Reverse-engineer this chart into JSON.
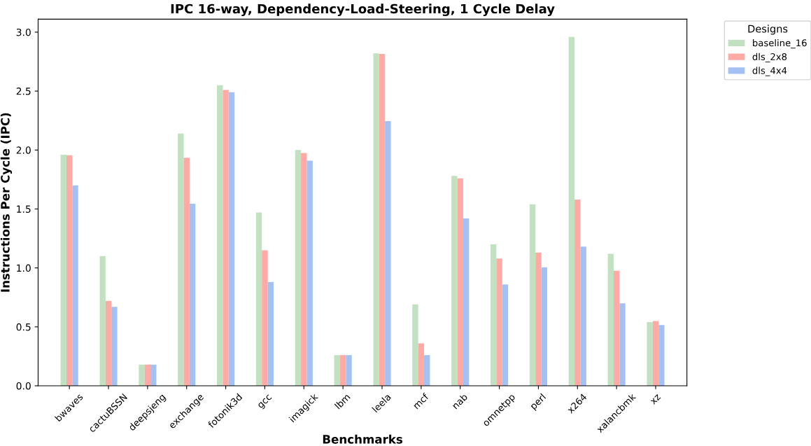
{
  "chart_data": {
    "type": "bar",
    "title": "IPC 16-way, Dependency-Load-Steering, 1 Cycle Delay",
    "xlabel": "Benchmarks",
    "ylabel": "Instructions Per Cycle (IPC)",
    "legend_title": "Designs",
    "legend": "top right",
    "categories": [
      "bwaves",
      "cactuBSSN",
      "deepsjeng",
      "exchange",
      "fotonik3d",
      "gcc",
      "imagick",
      "lbm",
      "leela",
      "mcf",
      "nab",
      "omnetpp",
      "perl",
      "x264",
      "xalancbmk",
      "xz"
    ],
    "series": [
      {
        "name": "baseline_16",
        "color": "#c1e1c1",
        "values": [
          1.96,
          1.1,
          0.18,
          2.14,
          2.55,
          1.47,
          2.0,
          0.26,
          2.82,
          0.69,
          1.78,
          1.2,
          1.54,
          2.96,
          1.12,
          0.54
        ]
      },
      {
        "name": "dls_2x8",
        "color": "#ffaaa5",
        "values": [
          1.955,
          0.72,
          0.18,
          1.935,
          2.51,
          1.15,
          1.975,
          0.26,
          2.815,
          0.36,
          1.76,
          1.08,
          1.13,
          1.58,
          0.975,
          0.55
        ]
      },
      {
        "name": "dls_4x4",
        "color": "#a3c1f2",
        "values": [
          1.7,
          0.67,
          0.18,
          1.545,
          2.49,
          0.88,
          1.91,
          0.26,
          2.245,
          0.26,
          1.42,
          0.86,
          1.005,
          1.18,
          0.7,
          0.515
        ]
      }
    ],
    "ylim": [
      0,
      3.11
    ],
    "yticks": [
      {
        "value": 0,
        "label": "0.0"
      },
      0.5,
      {
        "value": 1,
        "label": "1.0"
      },
      1.5,
      {
        "value": 2,
        "label": "2.0"
      },
      2.5,
      {
        "value": 3,
        "label": "3.0"
      }
    ],
    "grid": false
  }
}
